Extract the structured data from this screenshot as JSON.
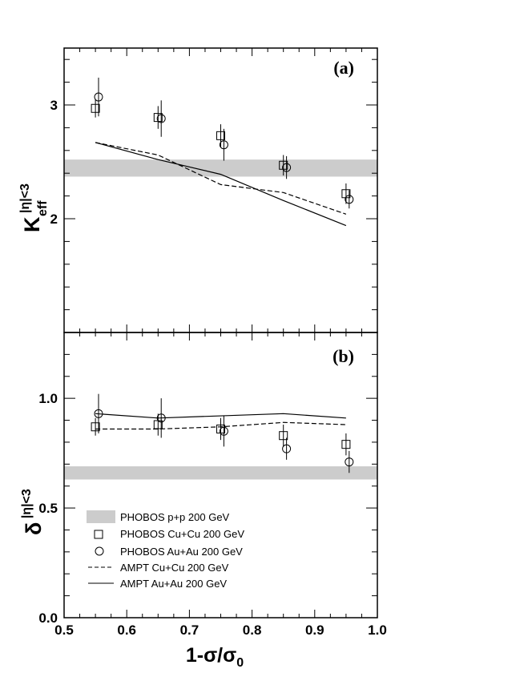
{
  "chart_data": [
    {
      "panel": "(a)",
      "type": "scatter",
      "xlabel_parts": [
        "1-σ/σ",
        "0"
      ],
      "ylabel_parts": [
        "K",
        "|η|<3",
        "eff"
      ],
      "xlim": [
        0.5,
        1.0
      ],
      "ylim": [
        1.0,
        3.5
      ],
      "xticks": [
        0.5,
        0.6,
        0.7,
        0.8,
        0.9,
        1.0
      ],
      "yticks": [
        2,
        3
      ],
      "band": {
        "series": "PHOBOS p+p 200 GeV",
        "low": 2.37,
        "high": 2.52
      },
      "series": [
        {
          "name": "PHOBOS Cu+Cu 200 GeV",
          "marker": "square",
          "x": [
            0.55,
            0.65,
            0.75,
            0.85,
            0.95
          ],
          "y": [
            2.97,
            2.89,
            2.73,
            2.47,
            2.22
          ],
          "err": [
            0.08,
            0.1,
            0.1,
            0.09,
            0.09
          ]
        },
        {
          "name": "PHOBOS Au+Au 200 GeV",
          "marker": "circle",
          "x": [
            0.555,
            0.655,
            0.755,
            0.855,
            0.955
          ],
          "y": [
            3.07,
            2.88,
            2.65,
            2.45,
            2.17
          ],
          "err": [
            0.17,
            0.16,
            0.14,
            0.1,
            0.08
          ]
        },
        {
          "name": "AMPT Cu+Cu 200 GeV",
          "style": "dashed",
          "x": [
            0.55,
            0.65,
            0.75,
            0.85,
            0.95
          ],
          "y": [
            2.67,
            2.56,
            2.3,
            2.23,
            2.04
          ]
        },
        {
          "name": "AMPT Au+Au 200 GeV",
          "style": "solid",
          "x": [
            0.55,
            0.65,
            0.75,
            0.85,
            0.95
          ],
          "y": [
            2.67,
            2.52,
            2.39,
            2.16,
            1.94
          ]
        }
      ]
    },
    {
      "panel": "(b)",
      "type": "scatter",
      "xlabel_parts": [
        "1-σ/σ",
        "0"
      ],
      "ylabel_parts": [
        "δ",
        "|η|<3"
      ],
      "xlim": [
        0.5,
        1.0
      ],
      "ylim": [
        0.0,
        1.3
      ],
      "xticks": [
        0.5,
        0.6,
        0.7,
        0.8,
        0.9,
        1.0
      ],
      "yticks": [
        0.0,
        0.5,
        1.0
      ],
      "band": {
        "series": "PHOBOS p+p 200 GeV",
        "low": 0.63,
        "high": 0.69
      },
      "series": [
        {
          "name": "PHOBOS Cu+Cu 200 GeV",
          "marker": "square",
          "x": [
            0.55,
            0.65,
            0.75,
            0.85,
            0.95
          ],
          "y": [
            0.87,
            0.88,
            0.86,
            0.83,
            0.79
          ],
          "err": [
            0.04,
            0.05,
            0.05,
            0.05,
            0.05
          ]
        },
        {
          "name": "PHOBOS Au+Au 200 GeV",
          "marker": "circle",
          "x": [
            0.555,
            0.655,
            0.755,
            0.855,
            0.955
          ],
          "y": [
            0.93,
            0.91,
            0.85,
            0.77,
            0.71
          ],
          "err": [
            0.09,
            0.09,
            0.07,
            0.05,
            0.05
          ]
        },
        {
          "name": "AMPT Cu+Cu 200 GeV",
          "style": "dashed",
          "x": [
            0.55,
            0.65,
            0.75,
            0.85,
            0.95
          ],
          "y": [
            0.86,
            0.86,
            0.87,
            0.89,
            0.88
          ]
        },
        {
          "name": "AMPT Au+Au 200 GeV",
          "style": "solid",
          "x": [
            0.55,
            0.65,
            0.75,
            0.85,
            0.95
          ],
          "y": [
            0.93,
            0.91,
            0.92,
            0.93,
            0.91
          ]
        }
      ]
    }
  ],
  "legend": {
    "placement": "lower-left of panel (b)",
    "entries": [
      {
        "label": "PHOBOS p+p 200 GeV",
        "symbol": "band"
      },
      {
        "label": "PHOBOS Cu+Cu 200 GeV",
        "symbol": "square"
      },
      {
        "label": "PHOBOS Au+Au 200 GeV",
        "symbol": "circle"
      },
      {
        "label": "AMPT Cu+Cu 200 GeV",
        "symbol": "dashed"
      },
      {
        "label": "AMPT Au+Au 200 GeV",
        "symbol": "solid"
      }
    ]
  },
  "colors": {
    "band": "#cccccc",
    "ink": "#000000"
  }
}
